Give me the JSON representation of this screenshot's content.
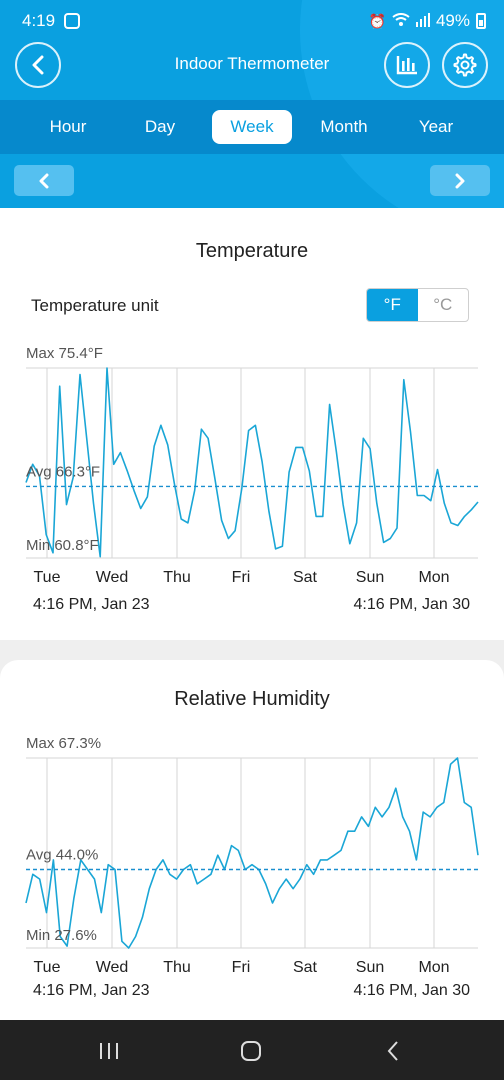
{
  "status": {
    "time": "4:19",
    "battery": "49%"
  },
  "appbar": {
    "title": "Indoor Thermometer"
  },
  "tabs": [
    {
      "label": "Hour",
      "active": false
    },
    {
      "label": "Day",
      "active": false
    },
    {
      "label": "Week",
      "active": true
    },
    {
      "label": "Month",
      "active": false
    },
    {
      "label": "Year",
      "active": false
    }
  ],
  "temperature_card": {
    "title": "Temperature",
    "unit_label": "Temperature unit",
    "unit_f": "°F",
    "unit_c": "°C",
    "selected_unit": "°F",
    "range_start": "4:16 PM,  Jan 23",
    "range_end": "4:16 PM,  Jan 30"
  },
  "humidity_card": {
    "title": "Relative Humidity",
    "range_start": "4:16 PM,  Jan 23",
    "range_end": "4:16 PM,  Jan 30"
  },
  "colors": {
    "accent": "#0aa0e0",
    "line": "#1aa6d6",
    "grid": "#d6d6d6"
  },
  "chart_data": [
    {
      "type": "line",
      "title": "Temperature",
      "x_ticks": [
        "Tue",
        "Wed",
        "Thu",
        "Fri",
        "Sat",
        "Sun",
        "Mon"
      ],
      "max_label": "Max 75.4°F",
      "avg_label": "Avg 66.3°F",
      "min_label": "Min 60.8°F",
      "ylim": [
        60.8,
        75.4
      ],
      "avg": 66.3,
      "series": [
        {
          "values": [
            66.6,
            68.0,
            67.1,
            62.6,
            61.2,
            74.0,
            64.9,
            67.0,
            74.9,
            70.0,
            65.0,
            60.9,
            75.4,
            68.0,
            68.9,
            67.5,
            66.0,
            64.6,
            65.5,
            69.4,
            71.0,
            69.5,
            66.5,
            63.8,
            63.5,
            66.0,
            70.7,
            70.0,
            66.9,
            63.7,
            62.3,
            62.9,
            66.2,
            70.6,
            71.0,
            68.2,
            64.4,
            61.5,
            61.7,
            67.4,
            69.3,
            69.3,
            67.5,
            64.0,
            64.0,
            72.6,
            69.0,
            64.9,
            61.9,
            63.5,
            70.0,
            69.2,
            65.0,
            62.0,
            62.3,
            63.1,
            74.5,
            70.5,
            65.6,
            65.6,
            65.2,
            67.6,
            65.0,
            63.5,
            63.3,
            64.0,
            64.5,
            65.1
          ]
        }
      ]
    },
    {
      "type": "line",
      "title": "Relative Humidity",
      "x_ticks": [
        "Tue",
        "Wed",
        "Thu",
        "Fri",
        "Sat",
        "Sun",
        "Mon"
      ],
      "max_label": "Max 67.3%",
      "avg_label": "Avg 44.0%",
      "min_label": "Min 27.6%",
      "ylim": [
        27.6,
        67.3
      ],
      "avg": 44.0,
      "series": [
        {
          "values": [
            37,
            43,
            42,
            35,
            46,
            30,
            28,
            38,
            46,
            44,
            42,
            35,
            45,
            44,
            29,
            27.6,
            30,
            34,
            40,
            44,
            46,
            43,
            42,
            44,
            45,
            41,
            42,
            43,
            47,
            44,
            49,
            48,
            44,
            45,
            44,
            41,
            37,
            40,
            42,
            40,
            42,
            45,
            43,
            46,
            46,
            47,
            48,
            52,
            52,
            55,
            53,
            57,
            55,
            57,
            61,
            55,
            52,
            46,
            56,
            55,
            57,
            58,
            66,
            67.3,
            58,
            57,
            47
          ]
        }
      ]
    }
  ]
}
